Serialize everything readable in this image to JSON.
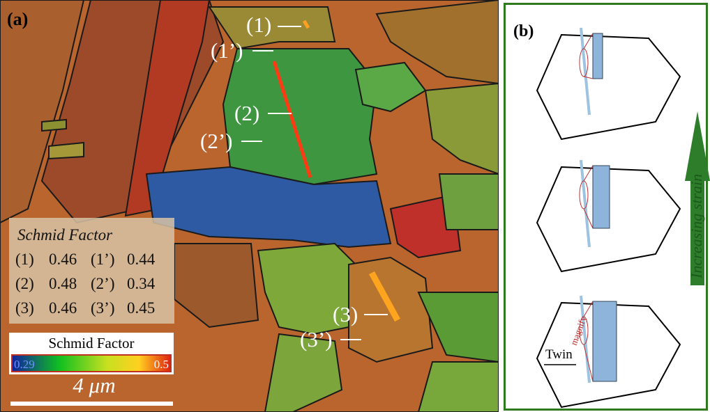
{
  "panel_a": {
    "label": "(a)",
    "markers": [
      "(1)",
      "(1’)",
      "(2)",
      "(2’)",
      "(3)",
      "(3’)"
    ],
    "table": {
      "title": "Schmid Factor",
      "rows": [
        [
          "(1)",
          0.46,
          "(1’)",
          0.44
        ],
        [
          "(2)",
          0.48,
          "(2’)",
          0.34
        ],
        [
          "(3)",
          0.46,
          "(3’)",
          0.45
        ]
      ]
    },
    "colorbar": {
      "title": "Schmid Factor",
      "min": 0.29,
      "max": 0.5
    },
    "scale_bar": "4 μm"
  },
  "panel_b": {
    "label": "(b)",
    "magnify": "magnify",
    "twin": "Twin",
    "arrow": "Increasing strain"
  }
}
